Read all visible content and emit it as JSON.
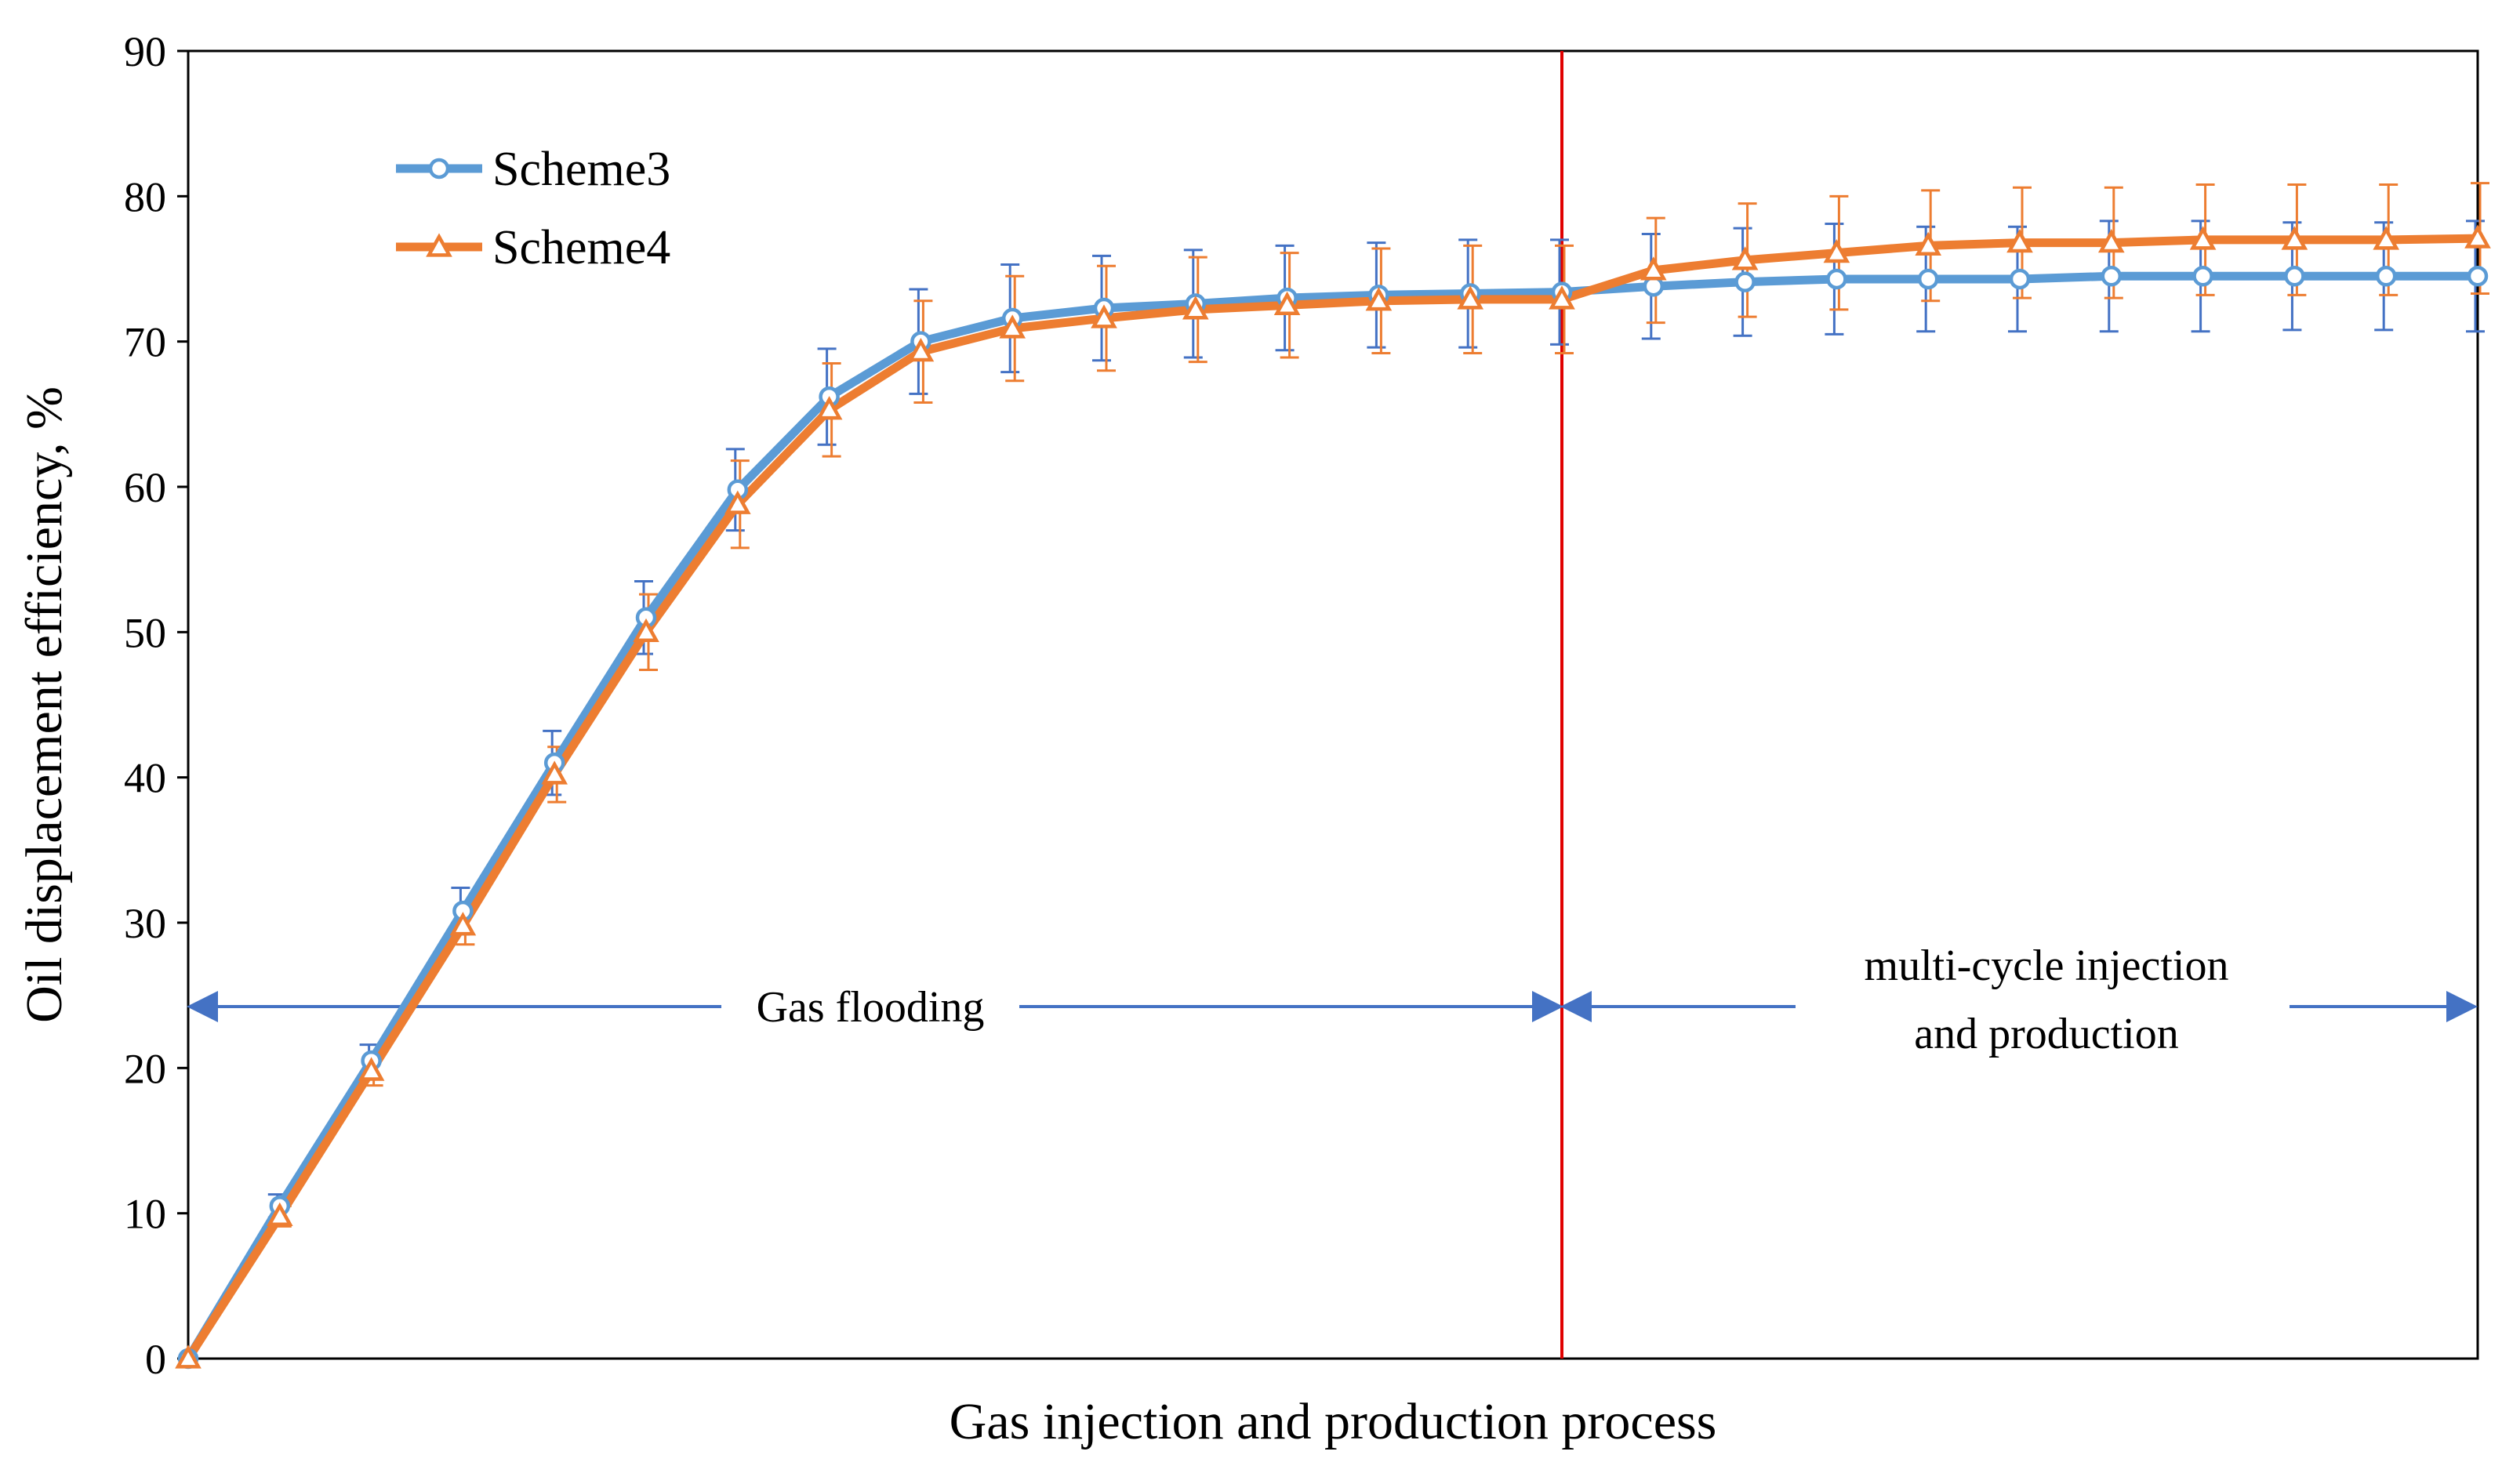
{
  "chart_data": {
    "type": "line",
    "title": "",
    "xlabel": "Gas injection  and production process",
    "ylabel": "Oil displacement efficiency, %",
    "ylim": [
      0,
      90
    ],
    "y_ticks": [
      0,
      10,
      20,
      30,
      40,
      50,
      60,
      70,
      80,
      90
    ],
    "grid": false,
    "legend_position": "top-left",
    "x": [
      0,
      1,
      2,
      3,
      4,
      5,
      6,
      7,
      8,
      9,
      10,
      11,
      12,
      13,
      14,
      15,
      16,
      17,
      18,
      19,
      20,
      21,
      22,
      23,
      24,
      25
    ],
    "series": [
      {
        "name": "Scheme3",
        "color": "#5B9BD5",
        "error_color": "#4472C4",
        "marker": "circle",
        "values": [
          0,
          10.5,
          20.5,
          30.8,
          41.0,
          51.0,
          59.8,
          66.2,
          70.0,
          71.6,
          72.3,
          72.6,
          73.0,
          73.2,
          73.3,
          73.4,
          73.8,
          74.1,
          74.3,
          74.3,
          74.3,
          74.5,
          74.5,
          74.5,
          74.5,
          74.5
        ],
        "errors": [
          0,
          0.8,
          1.1,
          1.6,
          2.2,
          2.5,
          2.8,
          3.3,
          3.6,
          3.7,
          3.6,
          3.7,
          3.6,
          3.6,
          3.7,
          3.6,
          3.6,
          3.7,
          3.8,
          3.6,
          3.6,
          3.8,
          3.8,
          3.7,
          3.7,
          3.8
        ]
      },
      {
        "name": "Scheme4",
        "color": "#ED7D31",
        "error_color": "#ED7D31",
        "marker": "triangle",
        "values": [
          0,
          9.8,
          19.8,
          29.8,
          40.2,
          50.0,
          58.8,
          65.3,
          69.3,
          70.9,
          71.6,
          72.2,
          72.5,
          72.8,
          72.9,
          72.9,
          74.9,
          75.6,
          76.1,
          76.6,
          76.8,
          76.8,
          77.0,
          77.0,
          77.0,
          77.1
        ],
        "errors": [
          0,
          0.7,
          1.0,
          1.3,
          1.9,
          2.6,
          3.0,
          3.2,
          3.5,
          3.6,
          3.6,
          3.6,
          3.6,
          3.6,
          3.7,
          3.7,
          3.6,
          3.9,
          3.9,
          3.8,
          3.8,
          3.8,
          3.8,
          3.8,
          3.8,
          3.8
        ]
      }
    ],
    "divider": {
      "after_index": 15,
      "color": "#E00000"
    },
    "annotations": {
      "phase1": {
        "label": "Gas flooding",
        "arrow_color": "#4472C4"
      },
      "phase2": {
        "label_line1": "multi-cycle  injection",
        "label_line2": "and production",
        "arrow_color": "#4472C4"
      }
    }
  }
}
